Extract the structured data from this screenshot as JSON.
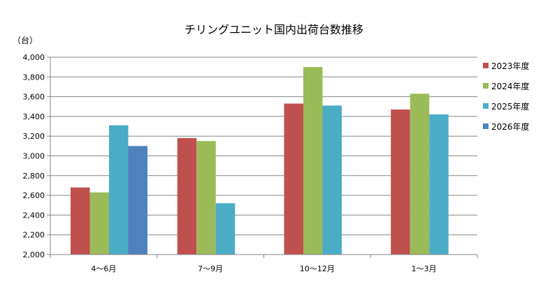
{
  "chart_data": {
    "type": "bar",
    "title": "チリングユニット国内出荷台数推移",
    "y_unit": "（台）",
    "categories": [
      "4～6月",
      "7～9月",
      "10～12月",
      "1～3月"
    ],
    "series": [
      {
        "name": "2023年度",
        "color": "#c0504d",
        "values": [
          2680,
          3180,
          3530,
          3470
        ]
      },
      {
        "name": "2024年度",
        "color": "#9bbb59",
        "values": [
          2630,
          3150,
          3900,
          3630
        ]
      },
      {
        "name": "2025年度",
        "color": "#4bacc6",
        "values": [
          3310,
          2520,
          3510,
          3420
        ]
      },
      {
        "name": "2026年度",
        "color": "#4f81bd",
        "values": [
          3100,
          null,
          null,
          null
        ]
      }
    ],
    "ylim": [
      2000,
      4000
    ],
    "yticks": [
      "2,000",
      "2,200",
      "2,400",
      "2,600",
      "2,800",
      "3,000",
      "3,200",
      "3,400",
      "3,600",
      "3,800",
      "4,000"
    ],
    "grid": true,
    "legend_position": "right"
  }
}
